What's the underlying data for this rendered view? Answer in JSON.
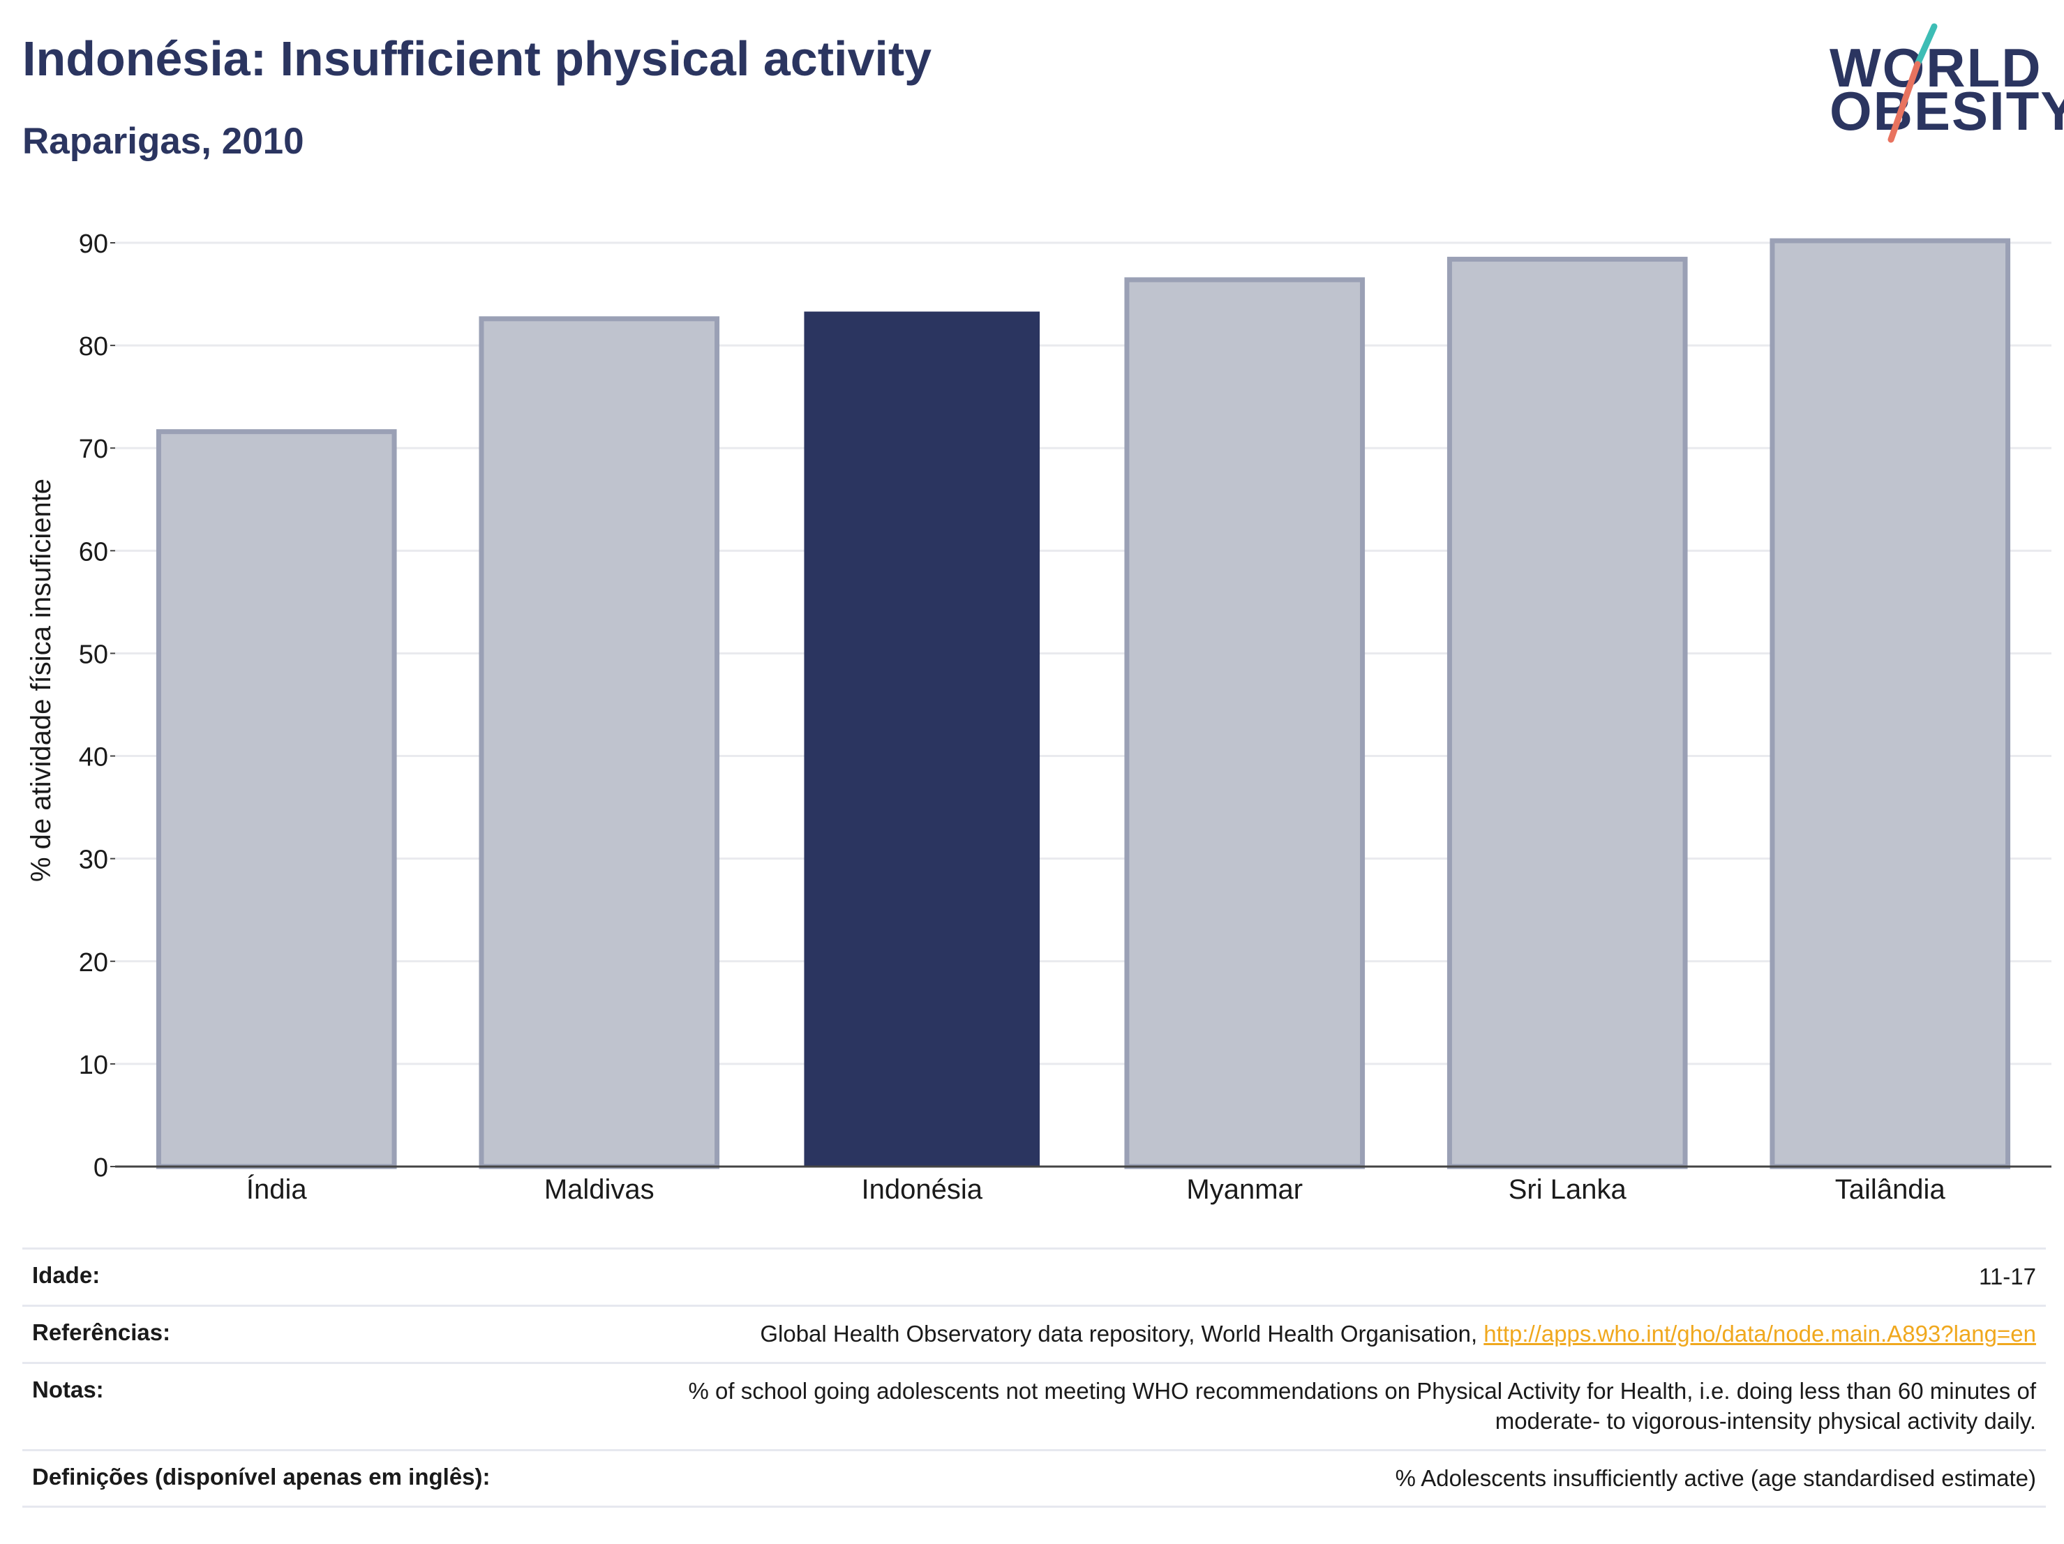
{
  "header": {
    "title": "Indonésia: Insufficient physical activity",
    "subtitle": "Raparigas, 2010"
  },
  "logo": {
    "line1": "WORLD",
    "line2": "OBESITY",
    "accent_teal": "#3dbdb5",
    "accent_coral": "#e8735f"
  },
  "chart_data": {
    "type": "bar",
    "categories": [
      "Índia",
      "Maldivas",
      "Indonésia",
      "Myanmar",
      "Sri Lanka",
      "Tailândia"
    ],
    "values": [
      71.6,
      82.6,
      83.3,
      86.4,
      88.4,
      90.2
    ],
    "highlight": "Indonésia",
    "ylabel": "% de atividade física insuficiente",
    "ylim": [
      0,
      90
    ],
    "yticks": [
      0,
      10,
      20,
      30,
      40,
      50,
      60,
      70,
      80,
      90
    ],
    "grid": true,
    "colors": {
      "bar": "#bfc3ce",
      "bar_border": "#9aa0b5",
      "highlight": "#2b3560",
      "grid": "#e9eaee",
      "axis": "#444444"
    }
  },
  "info": {
    "age_label": "Idade:",
    "age_value": "11-17",
    "refs_label": "Referências:",
    "refs_text": "Global Health Observatory data repository, World Health Organisation, ",
    "refs_link": "http://apps.who.int/gho/data/node.main.A893?lang=en",
    "notes_label": "Notas:",
    "notes_line1": "% of school going adolescents not meeting WHO recommendations on Physical Activity for Health, i.e. doing less than 60 minutes of",
    "notes_line2": "moderate- to vigorous-intensity physical activity daily.",
    "defs_label": "Definições (disponível apenas em inglês):",
    "defs_value": "% Adolescents insufficiently active (age standardised estimate)"
  }
}
